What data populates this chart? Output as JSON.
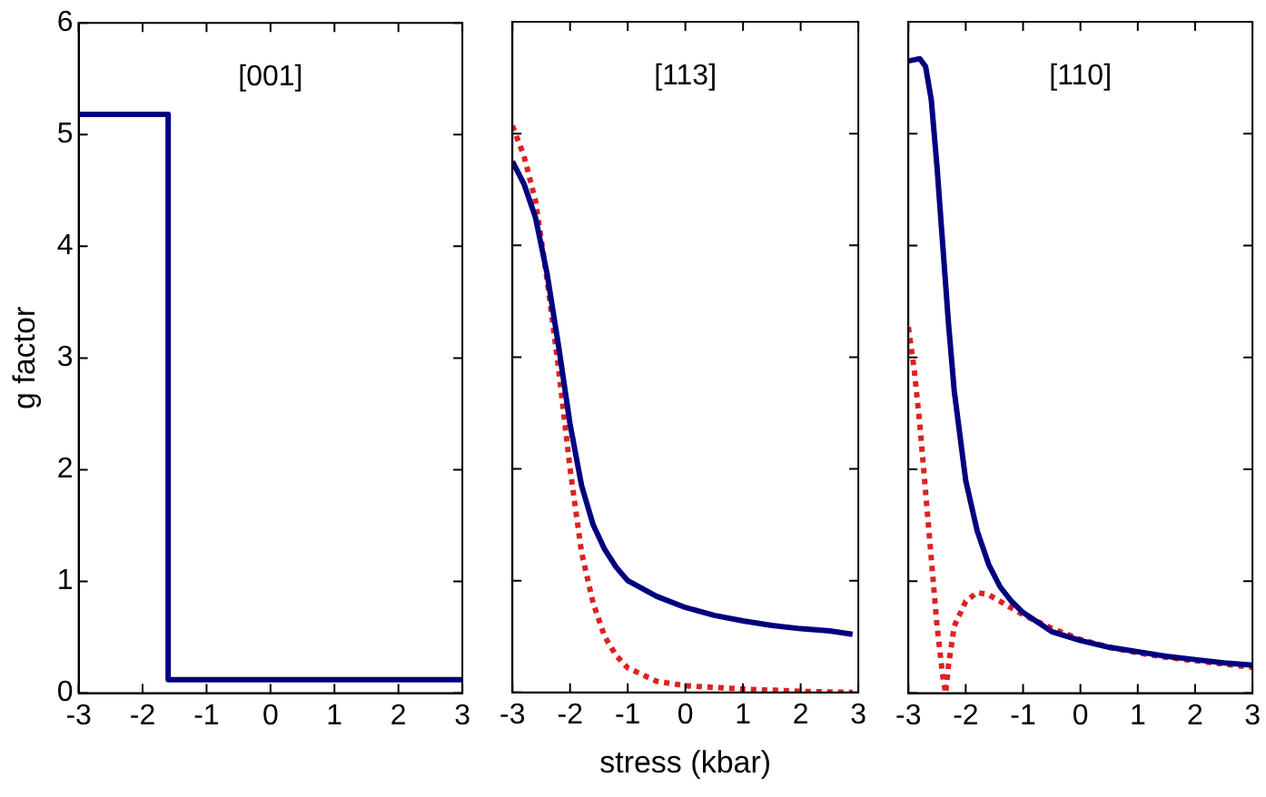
{
  "chart_data": [
    {
      "type": "line",
      "annotations": [
        "[001]"
      ],
      "ylabel": "g factor",
      "xlim": [
        -3,
        3
      ],
      "xticks": [
        -3,
        -2,
        -1,
        0,
        1,
        2,
        3
      ],
      "ylim": [
        0,
        6
      ],
      "yticks": [
        0,
        1,
        2,
        3,
        4,
        5,
        6
      ],
      "grid": false,
      "marker": "none",
      "series": [
        {
          "color": "#00007f",
          "line_style": "solid",
          "x": [
            -3,
            -1.6,
            -1.6,
            3
          ],
          "values": [
            5.18,
            5.18,
            0.12,
            0.12
          ]
        }
      ]
    },
    {
      "type": "line",
      "annotations": [
        "[113]"
      ],
      "xlabel": "stress (kbar)",
      "xlim": [
        -3,
        3
      ],
      "xticks": [
        -3,
        -2,
        -1,
        0,
        1,
        2,
        3
      ],
      "ylim": [
        0,
        6
      ],
      "yticks": [
        0,
        1,
        2,
        3,
        4,
        5,
        6
      ],
      "grid": false,
      "marker": "none",
      "tick_labels": "x",
      "series": [
        {
          "color": "#00007f",
          "line_style": "solid",
          "x": [
            -3,
            -2.8,
            -2.6,
            -2.4,
            -2.2,
            -2.0,
            -1.8,
            -1.6,
            -1.4,
            -1.2,
            -1,
            -0.5,
            0,
            0.5,
            1,
            1.5,
            2,
            2.5,
            2.9
          ],
          "values": [
            4.75,
            4.55,
            4.25,
            3.75,
            3.1,
            2.4,
            1.85,
            1.5,
            1.28,
            1.12,
            1.0,
            0.86,
            0.76,
            0.69,
            0.64,
            0.6,
            0.57,
            0.55,
            0.52
          ]
        },
        {
          "color": "#dd2222",
          "line_style": "dotted",
          "x": [
            -3,
            -2.8,
            -2.6,
            -2.4,
            -2.2,
            -2.0,
            -1.8,
            -1.6,
            -1.4,
            -1.2,
            -1,
            -0.5,
            0,
            1,
            2,
            2.9
          ],
          "values": [
            5.07,
            4.8,
            4.4,
            3.7,
            2.9,
            2.0,
            1.25,
            0.8,
            0.5,
            0.33,
            0.22,
            0.1,
            0.06,
            0.03,
            0.01,
            0.0
          ]
        }
      ]
    },
    {
      "type": "line",
      "annotations": [
        "[110]"
      ],
      "xlim": [
        -3,
        3
      ],
      "xticks": [
        -3,
        -2,
        -1,
        0,
        1,
        2,
        3
      ],
      "ylim": [
        0,
        6
      ],
      "yticks": [
        0,
        1,
        2,
        3,
        4,
        5,
        6
      ],
      "grid": false,
      "marker": "none",
      "tick_labels": "x",
      "series": [
        {
          "color": "#00007f",
          "line_style": "solid",
          "x": [
            -3,
            -2.8,
            -2.7,
            -2.6,
            -2.5,
            -2.4,
            -2.3,
            -2.2,
            -2.0,
            -1.8,
            -1.6,
            -1.4,
            -1.2,
            -1,
            -0.5,
            0,
            0.5,
            1,
            1.5,
            2,
            2.5,
            3
          ],
          "values": [
            5.65,
            5.67,
            5.6,
            5.3,
            4.7,
            4.0,
            3.3,
            2.7,
            1.9,
            1.45,
            1.15,
            0.95,
            0.82,
            0.72,
            0.55,
            0.47,
            0.41,
            0.37,
            0.33,
            0.3,
            0.27,
            0.25
          ]
        },
        {
          "color": "#dd2222",
          "line_style": "dotted",
          "x": [
            -3,
            -2.9,
            -2.8,
            -2.7,
            -2.6,
            -2.5,
            -2.4,
            -2.35,
            -2.3,
            -2.2,
            -2.0,
            -1.8,
            -1.6,
            -1.4,
            -1.2,
            -1,
            -0.5,
            0,
            0.5,
            1,
            1.5,
            2,
            2.5,
            3
          ],
          "values": [
            3.27,
            2.9,
            2.4,
            1.8,
            1.2,
            0.6,
            0.15,
            0.0,
            0.25,
            0.6,
            0.82,
            0.9,
            0.88,
            0.82,
            0.76,
            0.7,
            0.58,
            0.48,
            0.41,
            0.36,
            0.32,
            0.29,
            0.26,
            0.23
          ]
        }
      ]
    }
  ]
}
